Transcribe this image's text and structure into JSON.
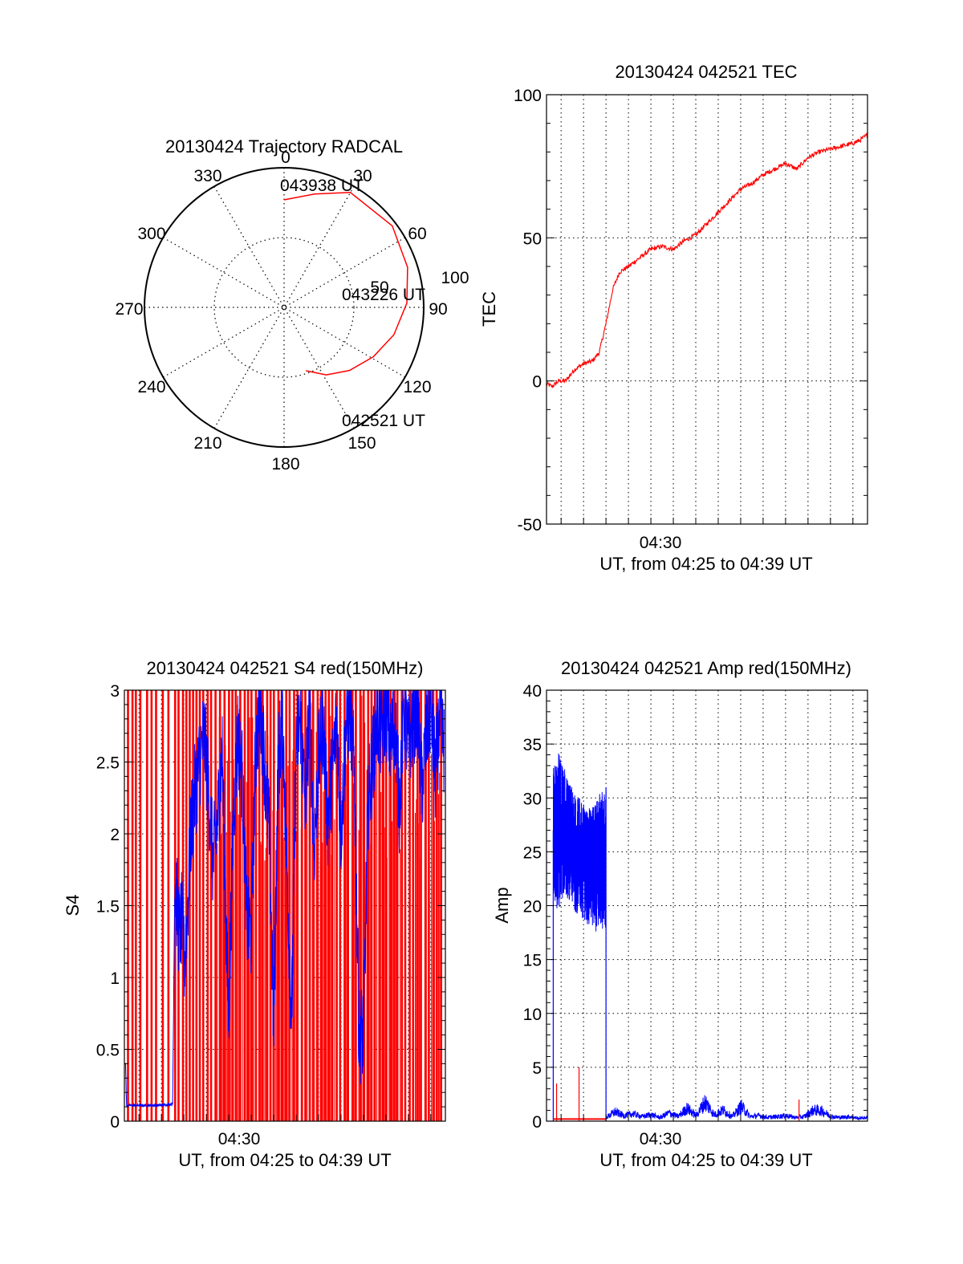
{
  "colors": {
    "red_channel": "#ff0000",
    "blue_channel": "#0000ff",
    "axes": "#000000",
    "grid": "#000000"
  },
  "chart_data": [
    {
      "id": "trajectory",
      "type": "polar",
      "title": "20130424 Trajectory RADCAL",
      "azimuth_labels": [
        "0",
        "30",
        "60",
        "90",
        "120",
        "150",
        "180",
        "210",
        "240",
        "270",
        "300",
        "330"
      ],
      "elevation_ring_labels": [
        "50",
        "100"
      ],
      "elevation_range": [
        0,
        100
      ],
      "trajectory": {
        "color": "#ff0000",
        "points": [
          {
            "az": 161,
            "el": 52
          },
          {
            "az": 148,
            "el": 43
          },
          {
            "az": 134,
            "el": 35
          },
          {
            "az": 119,
            "el": 27
          },
          {
            "az": 104,
            "el": 19
          },
          {
            "az": 88,
            "el": 12
          },
          {
            "az": 72,
            "el": 7
          },
          {
            "az": 53,
            "el": 3
          },
          {
            "az": 30,
            "el": 5
          },
          {
            "az": 15,
            "el": 16
          },
          {
            "az": 0,
            "el": 23
          }
        ],
        "labels": [
          {
            "text": "042521 UT",
            "at": "start"
          },
          {
            "text": "043226 UT",
            "at": "middle"
          },
          {
            "text": "043938 UT",
            "at": "end"
          }
        ]
      }
    },
    {
      "id": "tec",
      "type": "line",
      "title": "20130424 042521 TEC",
      "ylabel": "TEC",
      "xlabel": "UT, from 04:25 to 04:39 UT",
      "x_tick_label": "04:30",
      "x_tick_minute": 30,
      "x_range_minutes": [
        25.35,
        39.65
      ],
      "ylim": [
        -50,
        100
      ],
      "yticks": [
        "-50",
        "0",
        "50",
        "100"
      ],
      "grid": true,
      "series": [
        {
          "color": "#ff0000",
          "x_minutes": [
            25.35,
            25.6,
            25.9,
            26.2,
            26.6,
            27.0,
            27.4,
            27.7,
            28.0,
            28.3,
            28.6,
            29.0,
            29.5,
            30.0,
            30.5,
            31.0,
            31.5,
            32.0,
            32.5,
            33.0,
            33.5,
            34.0,
            34.5,
            35.0,
            35.5,
            36.0,
            36.5,
            37.0,
            37.5,
            38.0,
            38.5,
            39.0,
            39.3,
            39.65
          ],
          "values": [
            -1,
            -2,
            0,
            0,
            4,
            6,
            7,
            10,
            20,
            32,
            38,
            40,
            43,
            46,
            47,
            46,
            49,
            51,
            55,
            59,
            63,
            67,
            69,
            72,
            74,
            76,
            74,
            78,
            80,
            81,
            82,
            83,
            84,
            86
          ]
        }
      ]
    },
    {
      "id": "s4",
      "type": "line",
      "title": "20130424 042521 S4 red(150MHz)",
      "ylabel": "S4",
      "xlabel": "UT, from 04:25 to 04:39 UT",
      "x_tick_label": "04:30",
      "x_tick_minute": 30,
      "x_range_minutes": [
        25.35,
        39.65
      ],
      "ylim": [
        0,
        3
      ],
      "yticks": [
        "0",
        "0.5",
        "1",
        "1.5",
        "2",
        "2.5",
        "3"
      ],
      "grid": true,
      "series": [
        {
          "color": "#ff0000",
          "vertical_spikes_x_minutes": [
            25.5,
            25.7,
            25.85,
            26.05,
            26.35,
            26.55,
            26.75,
            27.05,
            27.3,
            27.6,
            27.75,
            27.95,
            28.1,
            28.25,
            28.4,
            28.55,
            28.7,
            28.85,
            29.05,
            29.2,
            29.4,
            29.6,
            29.8,
            30.0,
            30.15,
            30.3,
            30.5,
            30.7,
            30.85,
            31.0,
            31.2,
            31.35,
            31.5,
            31.7,
            31.85,
            32.0,
            32.2,
            32.35,
            32.55,
            32.7,
            32.9,
            33.05,
            33.25,
            33.4,
            33.6,
            33.75,
            33.95,
            34.1,
            34.3,
            34.45,
            34.6,
            34.8,
            34.95,
            35.15,
            35.3,
            35.5,
            35.65,
            35.85,
            36.0,
            36.2,
            36.35,
            36.5,
            36.7,
            36.85,
            37.0,
            37.2,
            37.35,
            37.5,
            37.7,
            37.85,
            38.05,
            38.2,
            38.4,
            38.55,
            38.75,
            38.9,
            39.1,
            39.25,
            39.45
          ],
          "ylim_top": 3
        },
        {
          "color": "#0000ff",
          "x_minutes": [
            25.4,
            25.45,
            25.5,
            26.0,
            26.5,
            27.0,
            27.5,
            27.6,
            27.7,
            27.8,
            27.9,
            28.0,
            28.1,
            28.2,
            28.3,
            28.5,
            28.7,
            28.9,
            29.1,
            29.3,
            29.5,
            29.7,
            29.9,
            30.0,
            30.2,
            30.4,
            30.6,
            30.8,
            31.0,
            31.2,
            31.4,
            31.6,
            31.8,
            32.0,
            32.2,
            32.4,
            32.6,
            32.8,
            33.0,
            33.2,
            33.4,
            33.6,
            33.8,
            34.0,
            34.2,
            34.4,
            34.6,
            34.8,
            35.0,
            35.2,
            35.4,
            35.6,
            35.8,
            36.0,
            36.2,
            36.4,
            36.6,
            36.8,
            37.0,
            37.2,
            37.4,
            37.6,
            37.8,
            38.0,
            38.2,
            38.4,
            38.6,
            38.8,
            39.0,
            39.2,
            39.4,
            39.6
          ],
          "values": [
            0.4,
            0.1,
            0.11,
            0.11,
            0.11,
            0.11,
            0.12,
            1.7,
            1.5,
            1.3,
            1.4,
            1.1,
            1.3,
            1.6,
            2.0,
            2.3,
            2.5,
            2.7,
            2.3,
            1.8,
            2.1,
            2.6,
            1.2,
            0.75,
            2.1,
            2.7,
            2.4,
            1.4,
            1.3,
            2.6,
            2.9,
            2.5,
            2.0,
            0.65,
            2.5,
            2.8,
            1.7,
            0.7,
            2.6,
            2.8,
            2.2,
            2.9,
            1.9,
            2.5,
            2.8,
            2.1,
            2.4,
            2.8,
            2.0,
            2.7,
            2.9,
            2.4,
            0.6,
            0.62,
            2.2,
            2.5,
            2.8,
            2.7,
            2.9,
            2.6,
            2.8,
            2.2,
            2.9,
            2.6,
            2.8,
            2.9,
            2.3,
            2.7,
            2.9,
            2.4,
            2.8,
            2.6
          ]
        }
      ]
    },
    {
      "id": "amp",
      "type": "line",
      "title": "20130424 042521 Amp red(150MHz)",
      "ylabel": "Amp",
      "xlabel": "UT, from 04:25 to 04:39 UT",
      "x_tick_label": "04:30",
      "x_tick_minute": 30,
      "x_range_minutes": [
        25.35,
        39.65
      ],
      "ylim": [
        0,
        40
      ],
      "yticks": [
        "0",
        "5",
        "10",
        "15",
        "20",
        "25",
        "30",
        "35",
        "40"
      ],
      "grid": true,
      "series": [
        {
          "color": "#0000ff",
          "band_x_minutes": [
            25.65,
            28.0
          ],
          "band_upper": [
            33,
            34.5,
            33,
            31.5,
            30.5,
            30,
            29.5,
            29,
            30,
            30.5,
            31
          ],
          "band_lower": [
            20,
            19,
            21,
            20.5,
            19.5,
            19,
            18.5,
            18,
            17.5,
            18,
            17.5
          ],
          "edges": [
            {
              "x": 25.65,
              "from": 0,
              "to": 27
            },
            {
              "x": 28.0,
              "from": 31,
              "to": 0
            }
          ],
          "baseline_x_minutes": [
            28.0,
            39.65
          ],
          "baseline_values": [
            0.4,
            1.0,
            0.6,
            0.8,
            0.5,
            0.7,
            0.4,
            0.9,
            0.5,
            1.4,
            0.6,
            2.1,
            0.7,
            1.2,
            0.5,
            1.6,
            0.5,
            0.6,
            0.4,
            0.5,
            0.6,
            0.4,
            0.5,
            1.2,
            1.1,
            0.5,
            0.4,
            0.5,
            0.3,
            0.4
          ]
        },
        {
          "color": "#ff0000",
          "x_minutes": [
            25.65,
            28.0
          ],
          "values": [
            0.2,
            0.2
          ],
          "spikes": [
            {
              "x": 25.8,
              "value": 3.5
            },
            {
              "x": 26.8,
              "value": 5
            },
            {
              "x": 36.6,
              "value": 2
            }
          ]
        }
      ]
    }
  ]
}
